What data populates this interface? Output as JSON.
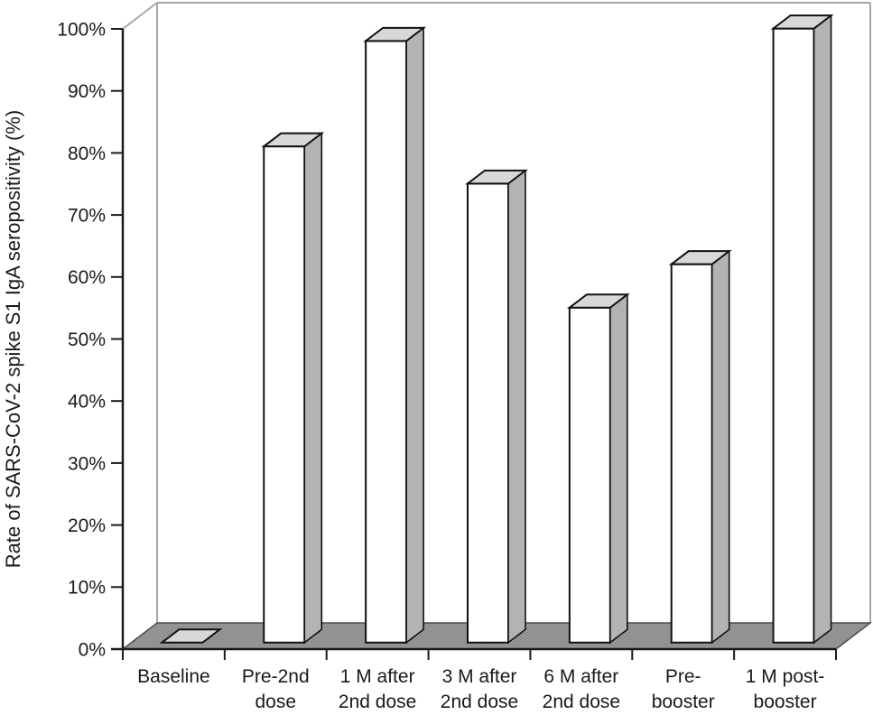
{
  "page": {
    "background": "#ffffff"
  },
  "chart_data": {
    "type": "bar",
    "style": "3d-column",
    "title": "",
    "xlabel": "",
    "ylabel": "Rate of SARS-CoV-2 spike S1 IgA seropositivity (%)",
    "categories": [
      "Baseline",
      "Pre-2nd dose",
      "1 M after 2nd dose",
      "3 M after 2nd dose",
      "6 M after 2nd dose",
      "Pre-booster",
      "1 M post-booster"
    ],
    "category_label_lines": [
      [
        "Baseline"
      ],
      [
        "Pre-2nd",
        "dose"
      ],
      [
        "1 M after",
        "2nd dose"
      ],
      [
        "3 M after",
        "2nd dose"
      ],
      [
        "6 M after",
        "2nd dose"
      ],
      [
        "Pre-",
        "booster"
      ],
      [
        "1 M post-",
        "booster"
      ]
    ],
    "values": [
      0,
      80,
      97,
      74,
      54,
      61,
      99
    ],
    "ylim": [
      0,
      100
    ],
    "ytick_labels": [
      "0%",
      "10%",
      "20%",
      "30%",
      "40%",
      "50%",
      "60%",
      "70%",
      "80%",
      "90%",
      "100%"
    ],
    "grid": false,
    "legend": "none",
    "colors": {
      "bar_front": "#ffffff",
      "bar_top": "#d8d8d8",
      "bar_side": "#b3b3b3",
      "bar_outline": "#111111",
      "floor_light": "#b0b0b0",
      "floor_dark": "#757575",
      "floor_edge": "#4d4d4d",
      "frame_line": "#a6a6a6",
      "axis_line": "#1a1a1a",
      "text": "#1a1a1a"
    }
  }
}
